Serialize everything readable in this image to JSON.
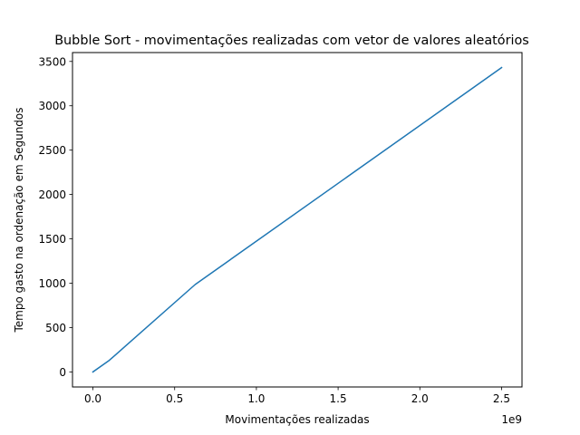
{
  "chart_data": {
    "type": "line",
    "title": "Bubble Sort - movimentações realizadas com vetor de valores aleatórios",
    "xlabel": "Movimentações realizadas",
    "ylabel": "Tempo gasto na ordenação  em Segundos",
    "x_offset_label": "1e9",
    "xlim": [
      -0.125,
      2.625
    ],
    "ylim": [
      -170,
      3600
    ],
    "xticks": [
      0.0,
      0.5,
      1.0,
      1.5,
      2.0,
      2.5
    ],
    "xtick_labels": [
      "0.0",
      "0.5",
      "1.0",
      "1.5",
      "2.0",
      "2.5"
    ],
    "yticks": [
      0,
      500,
      1000,
      1500,
      2000,
      2500,
      3000,
      3500
    ],
    "ytick_labels": [
      "0",
      "500",
      "1000",
      "1500",
      "2000",
      "2500",
      "3000",
      "3500"
    ],
    "grid": false,
    "series": [
      {
        "color": "#1f77b4",
        "x": [
          0.0,
          0.1,
          0.625,
          2.5
        ],
        "y": [
          0,
          130,
          985,
          3430
        ]
      }
    ]
  }
}
